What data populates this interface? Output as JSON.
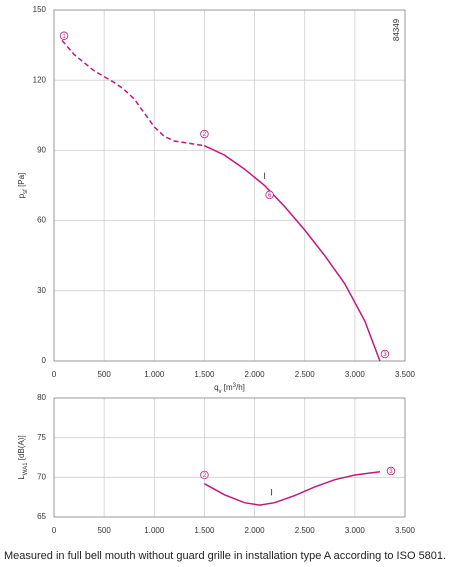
{
  "chart_data": [
    {
      "type": "line",
      "code": "84349",
      "ylabel_parts": [
        "p",
        "sf",
        " [Pa]"
      ],
      "xlabel_parts": [
        "q",
        "v",
        " [m",
        "3",
        "/h]"
      ],
      "xlim": [
        0,
        3500
      ],
      "xticks": [
        0,
        500,
        {
          "value": 1000,
          "label": "1.000"
        },
        {
          "value": 1500,
          "label": "1.500"
        },
        {
          "value": 2000,
          "label": "2.000"
        },
        {
          "value": 2500,
          "label": "2.500"
        },
        {
          "value": 3000,
          "label": "3.000"
        },
        {
          "value": 3500,
          "label": "3.500"
        }
      ],
      "ylim": [
        0,
        150
      ],
      "yticks": [
        0,
        30,
        60,
        90,
        120,
        150
      ],
      "grid": true,
      "series": [
        {
          "color": "#c2187f",
          "dashed": true,
          "x": [
            80,
            200,
            400,
            600,
            700,
            800,
            900,
            1000,
            1100,
            1200,
            1350,
            1500
          ],
          "values": [
            137,
            131,
            124,
            119,
            116,
            112,
            106,
            100,
            96,
            94,
            93,
            92
          ]
        },
        {
          "color": "#c2187f",
          "dashed": false,
          "x": [
            1500,
            1700,
            1900,
            2100,
            2300,
            2500,
            2700,
            2900,
            3100,
            3250
          ],
          "values": [
            92,
            88,
            82,
            75,
            66,
            56,
            45,
            33,
            17,
            0
          ]
        }
      ],
      "annotations": [
        {
          "text": "1",
          "x": 100,
          "y": 139,
          "circled": true
        },
        {
          "text": "2",
          "x": 1500,
          "y": 97,
          "circled": true
        },
        {
          "text": "6",
          "x": 2150,
          "y": 71,
          "circled": true
        },
        {
          "text": "3",
          "x": 3300,
          "y": 3,
          "circled": true
        },
        {
          "text": "I",
          "x": 2100,
          "y": 79,
          "circled": false
        }
      ]
    },
    {
      "type": "line",
      "ylabel_parts": [
        "L",
        "WA1",
        " [dB(A)]"
      ],
      "xlim": [
        0,
        3500
      ],
      "xticks": [
        0,
        500,
        {
          "value": 1000,
          "label": "1.000"
        },
        {
          "value": 1500,
          "label": "1.500"
        },
        {
          "value": 2000,
          "label": "2.000"
        },
        {
          "value": 2500,
          "label": "2.500"
        },
        {
          "value": 3000,
          "label": "3.000"
        },
        {
          "value": 3500,
          "label": "3.500"
        }
      ],
      "ylim": [
        65,
        80
      ],
      "yticks": [
        65,
        70,
        75,
        80
      ],
      "grid": true,
      "series": [
        {
          "color": "#c2187f",
          "dashed": false,
          "x": [
            1500,
            1700,
            1900,
            2050,
            2200,
            2400,
            2600,
            2800,
            3000,
            3250
          ],
          "values": [
            69.2,
            67.8,
            66.8,
            66.5,
            66.8,
            67.7,
            68.8,
            69.7,
            70.3,
            70.7
          ]
        }
      ],
      "annotations": [
        {
          "text": "2",
          "x": 1500,
          "y": 70.3,
          "circled": true
        },
        {
          "text": "3",
          "x": 3360,
          "y": 70.8,
          "circled": true
        },
        {
          "text": "I",
          "x": 2170,
          "y": 68.1,
          "circled": false
        }
      ]
    }
  ],
  "caption": "Measured in full bell mouth without guard grille in installation type A according to ISO 5801."
}
